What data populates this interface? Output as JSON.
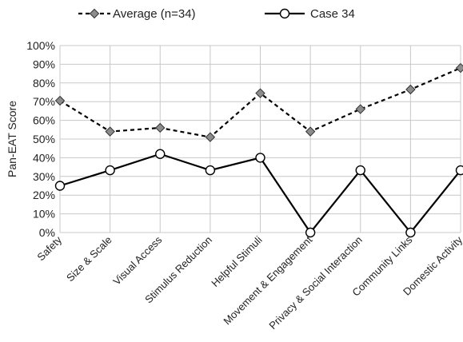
{
  "chart_data": {
    "type": "line",
    "categories": [
      "Safety",
      "Size & Scale",
      "Visual Access",
      "Stimulus Reduction",
      "Helpful Stimuli",
      "Movement & Engagement",
      "Privacy & Social Interaction",
      "Community Links",
      "Domestic Activity"
    ],
    "series": [
      {
        "name": "Average (n=34)",
        "values": [
          70.5,
          54,
          56,
          51,
          74.5,
          54,
          66,
          76.5,
          88
        ],
        "line_style": "dashed",
        "marker": "diamond",
        "marker_color": "#8c8c8c"
      },
      {
        "name": "Case 34",
        "values": [
          25,
          33.3,
          42,
          33.3,
          40,
          0,
          33.3,
          0,
          33.3
        ],
        "line_style": "solid",
        "marker": "circle",
        "marker_color": "#ffffff"
      }
    ],
    "title": "",
    "xlabel": "",
    "ylabel": "Pan-EAT Score",
    "ylim": [
      0,
      100
    ],
    "yticks": [
      "0%",
      "10%",
      "20%",
      "30%",
      "40%",
      "50%",
      "60%",
      "70%",
      "80%",
      "90%",
      "100%"
    ],
    "grid": "horizontal and vertical",
    "legend_position": "top",
    "colors": {
      "line": "#000000",
      "grid": "#c8c8c8"
    }
  }
}
